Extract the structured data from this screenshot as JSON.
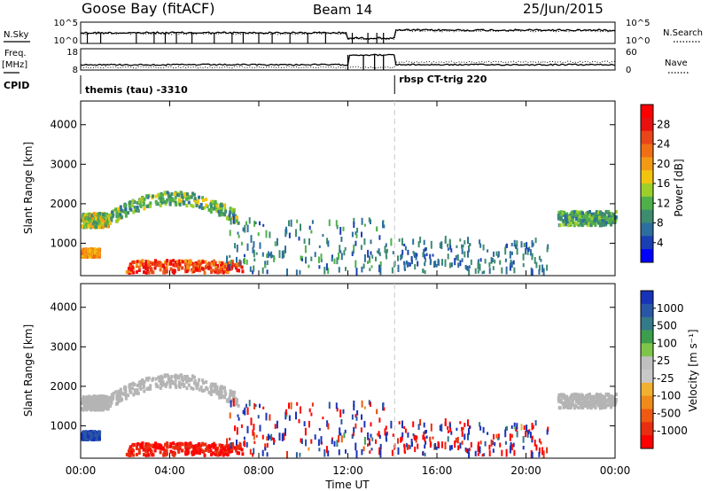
{
  "header": {
    "station": "Goose Bay (fitACF)",
    "beam": "Beam 14",
    "date": "25/Jun/2015"
  },
  "top_panels": {
    "nsky_label": "N.Sky",
    "nsearch_label": "N.Search",
    "nsky_ticks": [
      "10^5",
      "10^0"
    ],
    "nsearch_ticks": [
      "10^5",
      "10^0"
    ],
    "freq_label_1": "Freq.",
    "freq_label_2": "[MHz]",
    "freq_ticks": [
      "18",
      "8"
    ],
    "nave_label": "Nave",
    "nave_ticks": [
      "60",
      "0"
    ],
    "cpid_label": "CPID",
    "cpid_segments": [
      {
        "label": "themis (tau) -3310",
        "start_hour": 0
      },
      {
        "label": "rbsp CT-trig 220",
        "start_hour": 14.1
      }
    ]
  },
  "colors": {
    "power_scale": [
      "#0000ff",
      "#1a3fb4",
      "#2e6e9e",
      "#3e8c6e",
      "#4fb04a",
      "#9ccf2a",
      "#f2c40e",
      "#f39a14",
      "#f06e14",
      "#e8451a",
      "#e81010",
      "#ff0000"
    ],
    "velocity_scale": [
      "#1733b8",
      "#2a56a6",
      "#347a88",
      "#3c9e4c",
      "#7ec64a",
      "#c0c0c0",
      "#c8c8c8",
      "#f0b030",
      "#f08a1a",
      "#ee5a12",
      "#e82e10",
      "#ff0000"
    ],
    "ground_scatter": "#b4b4b4"
  },
  "chart_data": [
    {
      "type": "heatmap",
      "title": "Power",
      "xlabel": "Time UT",
      "ylabel": "Slant Range [km]",
      "xlim": [
        0,
        24
      ],
      "ylim": [
        180,
        4600
      ],
      "x_ticks": [
        "00:00",
        "04:00",
        "08:00",
        "12:00",
        "16:00",
        "20:00",
        "00:00"
      ],
      "y_ticks": [
        1000,
        2000,
        3000,
        4000
      ],
      "colorbar_label": "Power [dB]",
      "colorbar_ticks": [
        4,
        8,
        12,
        16,
        20,
        24,
        28
      ],
      "colorbar_range": [
        0,
        30
      ],
      "regions": [
        {
          "name": "band-early",
          "t0": 0.0,
          "t1": 1.2,
          "r0": 1400,
          "r1": 1750,
          "value_range": [
            8,
            20
          ]
        },
        {
          "name": "band-arc",
          "t0": 1.2,
          "t1": 7.1,
          "r0": 1500,
          "r1": 2350,
          "value_range": [
            6,
            16
          ]
        },
        {
          "name": "near-e-region",
          "t0": 0.0,
          "t1": 0.8,
          "r0": 650,
          "r1": 850,
          "value_range": [
            16,
            22
          ]
        },
        {
          "name": "near-strong",
          "t0": 2.0,
          "t1": 7.3,
          "r0": 250,
          "r1": 560,
          "value_range": [
            18,
            30
          ]
        },
        {
          "name": "scatter-mid",
          "t0": 6.5,
          "t1": 14.0,
          "r0": 250,
          "r1": 1600,
          "value_range": [
            4,
            12
          ]
        },
        {
          "name": "scatter-late",
          "t0": 14.0,
          "t1": 21.0,
          "r0": 250,
          "r1": 1100,
          "value_range": [
            4,
            10
          ]
        },
        {
          "name": "band-late",
          "t0": 21.4,
          "t1": 24.0,
          "r0": 1450,
          "r1": 1800,
          "value_range": [
            6,
            14
          ]
        }
      ]
    },
    {
      "type": "heatmap",
      "title": "Velocity",
      "xlabel": "Time UT",
      "ylabel": "Slant Range [km]",
      "xlim": [
        0,
        24
      ],
      "ylim": [
        180,
        4600
      ],
      "x_ticks": [
        "00:00",
        "04:00",
        "08:00",
        "12:00",
        "16:00",
        "20:00",
        "00:00"
      ],
      "y_ticks": [
        1000,
        2000,
        3000,
        4000
      ],
      "colorbar_label": "Velocity [m s⁻¹]",
      "colorbar_ticks": [
        1000,
        500,
        100,
        25,
        -25,
        -100,
        -500,
        -1000
      ],
      "colorbar_range": [
        -1000,
        1000
      ],
      "regions": [
        {
          "name": "band-early",
          "t0": 0.0,
          "t1": 1.2,
          "r0": 1400,
          "r1": 1750,
          "value_range": [
            -25,
            25
          ]
        },
        {
          "name": "band-arc",
          "t0": 1.2,
          "t1": 7.1,
          "r0": 1500,
          "r1": 2350,
          "value_range": [
            -25,
            25
          ]
        },
        {
          "name": "near-e-region",
          "t0": 0.0,
          "t1": 0.8,
          "r0": 650,
          "r1": 850,
          "value_range": [
            100,
            500
          ]
        },
        {
          "name": "near-strong",
          "t0": 2.0,
          "t1": 7.3,
          "r0": 250,
          "r1": 560,
          "value_range": [
            -500,
            -100
          ]
        },
        {
          "name": "scatter-mid",
          "t0": 6.5,
          "t1": 14.0,
          "r0": 250,
          "r1": 1600,
          "value_range": [
            -1000,
            1000
          ]
        },
        {
          "name": "scatter-late",
          "t0": 14.0,
          "t1": 21.0,
          "r0": 250,
          "r1": 1100,
          "value_range": [
            -1000,
            1000
          ]
        },
        {
          "name": "band-late",
          "t0": 21.4,
          "t1": 24.0,
          "r0": 1450,
          "r1": 1800,
          "value_range": [
            -25,
            25
          ]
        }
      ]
    }
  ],
  "annotations": {
    "cpid_change_hour": 14.1
  }
}
